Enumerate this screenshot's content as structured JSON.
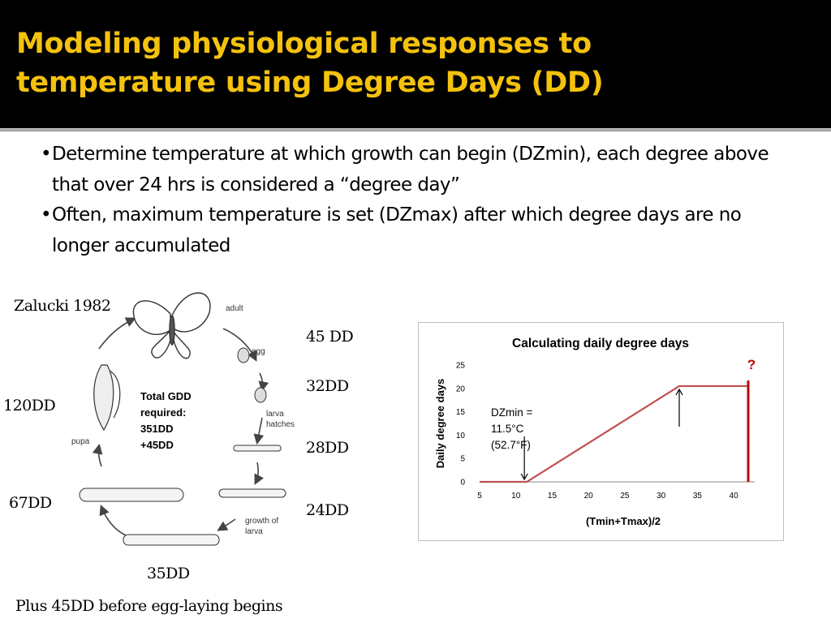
{
  "slide": {
    "title_line1": "Modeling physiological responses to",
    "title_line2": "temperature using Degree Days (DD)",
    "bullets": [
      "Determine temperature at which growth can begin (DZmin), each degree above that over 24 hrs is considered a “degree day”",
      "Often, maximum temperature is set (DZmax) after which degree days are no longer accumulated"
    ]
  },
  "lifecycle": {
    "citation": "Zalucki 1982",
    "stage_labels": {
      "adult": "adult",
      "egg": "egg",
      "larva_hatches": [
        "larva",
        "hatches"
      ],
      "growth": [
        "growth of",
        "larva"
      ],
      "pupa": "pupa"
    },
    "total_text": [
      "Total GDD",
      "required:",
      "351DD",
      "+45DD"
    ],
    "dd_labels": {
      "egg": "45 DD",
      "hatch": "32DD",
      "larva1": "28DD",
      "larva2": "24DD",
      "larva3": "35DD",
      "larva4": "67DD",
      "pupa": "120DD"
    },
    "footnote": "Plus 45DD before egg-laying begins"
  },
  "chart_data": {
    "type": "line",
    "title": "Calculating daily degree days",
    "xlabel": "(Tmin+Tmax)/2",
    "ylabel": "Daily degree days",
    "xlim": [
      5,
      42
    ],
    "ylim": [
      0,
      25
    ],
    "x_ticks": [
      5,
      10,
      15,
      20,
      25,
      30,
      35,
      40
    ],
    "y_ticks": [
      0,
      5,
      10,
      15,
      20,
      25
    ],
    "series": [
      {
        "color": "#c0504d",
        "x": [
          5,
          11.5,
          32.5,
          42
        ],
        "y": [
          0,
          0,
          20.5,
          20.5
        ]
      }
    ],
    "vertical_line": {
      "x": 42,
      "y_top": 21.7,
      "y_bottom": 0,
      "color": "#c00000"
    },
    "question_mark": "?",
    "dzmin_annotation": [
      "DZmin =",
      "11.5°C",
      "(52.7°F)"
    ],
    "arrows": [
      {
        "x": 11.5,
        "points_to_y": 0
      },
      {
        "x": 32.5,
        "points_to_y": 20.5
      }
    ]
  }
}
